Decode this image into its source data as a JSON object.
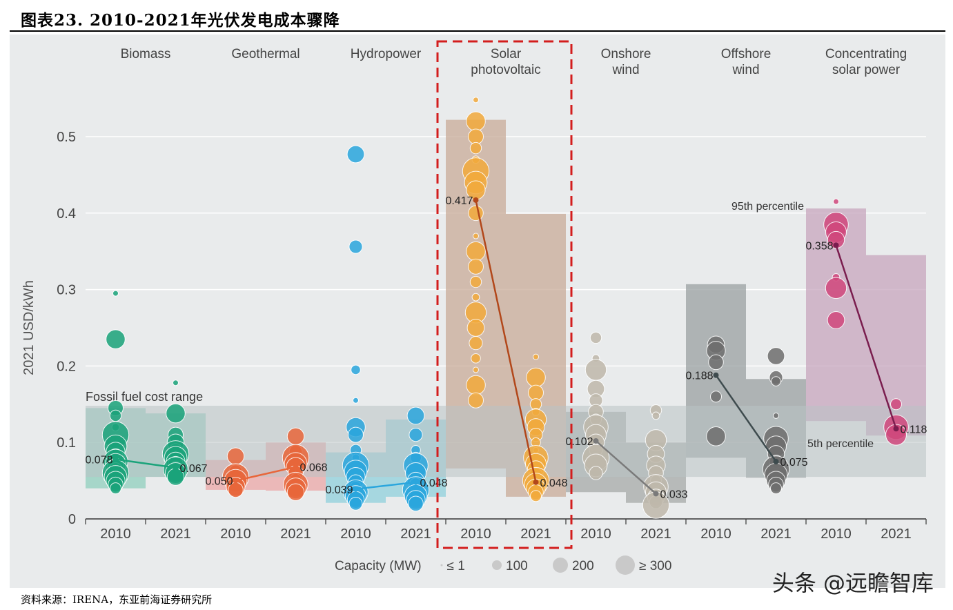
{
  "figure": {
    "title": "图表23. 2010-2021年光伏发电成本骤降",
    "source": "资料来源：IRENA，东亚前海证券研究所",
    "watermark": "头条 @远瞻智库"
  },
  "chart_data": {
    "type": "scatter",
    "ylabel": "2021 USD/kWh",
    "ylim": [
      0,
      0.55
    ],
    "yticks": [
      0,
      0.1,
      0.2,
      0.3,
      0.4,
      0.5
    ],
    "ytick_labels": [
      "0",
      "0.1",
      "0.2",
      "0.3",
      "0.4",
      "0.5"
    ],
    "years": [
      "2010",
      "2021"
    ],
    "fossil_range": {
      "label": "Fossil fuel cost range",
      "low": 0.055,
      "high": 0.148
    },
    "percentile_labels": {
      "p95": "95th percentile",
      "p5": "5th percentile"
    },
    "capacity_legend": {
      "label": "Capacity (MW)",
      "items": [
        "≤ 1",
        "100",
        "200",
        "≥ 300"
      ]
    },
    "technologies": [
      {
        "name": "Biomass",
        "color": "#1aa37a",
        "band_color": "#8fcfbd",
        "y2010": 0.078,
        "y2021": 0.067,
        "label2010": "0.078",
        "label2021": "0.067",
        "band2010": [
          0.04,
          0.145
        ],
        "band2021": [
          0.055,
          0.138
        ],
        "pts2010": [
          0.295,
          0.235,
          0.145,
          0.135,
          0.12,
          0.11,
          0.095,
          0.088,
          0.082,
          0.078,
          0.075,
          0.072,
          0.068,
          0.065,
          0.06,
          0.055,
          0.05,
          0.045,
          0.04
        ],
        "pts2021": [
          0.178,
          0.138,
          0.11,
          0.1,
          0.09,
          0.085,
          0.08,
          0.075,
          0.072,
          0.068,
          0.065,
          0.06,
          0.055
        ]
      },
      {
        "name": "Geothermal",
        "color": "#e8663a",
        "band_color": "#eba7a7",
        "y2010": 0.05,
        "y2021": 0.068,
        "label2010": "0.050",
        "label2021": "0.068",
        "band2010": [
          0.038,
          0.077
        ],
        "band2021": [
          0.037,
          0.1
        ],
        "pts2010": [
          0.082,
          0.062,
          0.055,
          0.05,
          0.042,
          0.038
        ],
        "pts2021": [
          0.108,
          0.088,
          0.08,
          0.072,
          0.068,
          0.06,
          0.052,
          0.045,
          0.04,
          0.035
        ]
      },
      {
        "name": "Hydropower",
        "color": "#2aa6dd",
        "band_color": "#8fd0dc",
        "y2010": 0.039,
        "y2021": 0.048,
        "label2010": "0.039",
        "label2021": "0.048",
        "band2010": [
          0.021,
          0.087
        ],
        "band2021": [
          0.029,
          0.13
        ],
        "pts2010": [
          0.477,
          0.356,
          0.195,
          0.155,
          0.12,
          0.11,
          0.09,
          0.08,
          0.07,
          0.062,
          0.055,
          0.048,
          0.042,
          0.035,
          0.03,
          0.025,
          0.02
        ],
        "pts2021": [
          0.135,
          0.11,
          0.09,
          0.08,
          0.07,
          0.06,
          0.05,
          0.045,
          0.038,
          0.03,
          0.025,
          0.02
        ]
      },
      {
        "name": "Solar photovoltaic",
        "color": "#f2aa3c",
        "band_color": "#c8ab98",
        "y2010": 0.417,
        "y2021": 0.048,
        "label2010": "0.417",
        "label2021": "0.048",
        "band2010": [
          0.066,
          0.522
        ],
        "band2021": [
          0.029,
          0.399
        ],
        "line_color": "#b2471a",
        "pts2010": [
          0.548,
          0.52,
          0.5,
          0.485,
          0.47,
          0.455,
          0.44,
          0.43,
          0.4,
          0.37,
          0.35,
          0.33,
          0.31,
          0.29,
          0.27,
          0.25,
          0.23,
          0.21,
          0.195,
          0.175,
          0.155
        ],
        "pts2021": [
          0.212,
          0.185,
          0.165,
          0.15,
          0.14,
          0.13,
          0.12,
          0.11,
          0.1,
          0.09,
          0.08,
          0.072,
          0.065,
          0.058,
          0.05,
          0.045,
          0.04,
          0.035,
          0.03
        ]
      },
      {
        "name": "Onshore wind",
        "color": "#bfb8ab",
        "band_color": "#a6aaa8",
        "y2010": 0.102,
        "y2021": 0.033,
        "label2010": "0.102",
        "label2021": "0.033",
        "band2010": [
          0.035,
          0.14
        ],
        "band2021": [
          0.021,
          0.1
        ],
        "line_color": "#7a7a7a",
        "pts2010": [
          0.237,
          0.21,
          0.195,
          0.17,
          0.155,
          0.14,
          0.13,
          0.12,
          0.11,
          0.1,
          0.09,
          0.08,
          0.07,
          0.06
        ],
        "pts2021": [
          0.142,
          0.135,
          0.103,
          0.085,
          0.07,
          0.06,
          0.05,
          0.042,
          0.035,
          0.028,
          0.022,
          0.018
        ]
      },
      {
        "name": "Offshore wind",
        "color": "#6e6e6e",
        "band_color": "#9aa0a2",
        "y2010": 0.188,
        "y2021": 0.075,
        "label2010": "0.188",
        "label2021": "0.075",
        "band2010": [
          0.08,
          0.307
        ],
        "band2021": [
          0.054,
          0.183
        ],
        "line_color": "#3e4b4e",
        "pts2010": [
          0.228,
          0.22,
          0.205,
          0.16,
          0.108
        ],
        "pts2021": [
          0.213,
          0.185,
          0.18,
          0.135,
          0.105,
          0.095,
          0.085,
          0.075,
          0.065,
          0.058,
          0.05,
          0.045,
          0.04
        ]
      },
      {
        "name": "Concentrating solar power",
        "color": "#d0477c",
        "band_color": "#c7a5bd",
        "y2010": 0.358,
        "y2021": 0.118,
        "label2010": "0.358",
        "label2021": "0.118",
        "band2010": [
          0.128,
          0.406
        ],
        "band2021": [
          0.109,
          0.345
        ],
        "line_color": "#7a1d4e",
        "pts2010": [
          0.415,
          0.385,
          0.375,
          0.365,
          0.316,
          0.302,
          0.26
        ],
        "pts2021": [
          0.15,
          0.12,
          0.11
        ]
      }
    ]
  }
}
